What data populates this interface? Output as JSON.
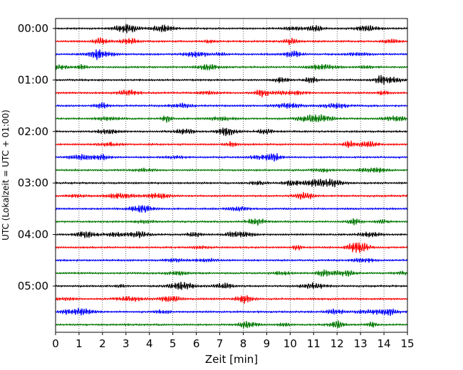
{
  "chart_data": {
    "type": "line",
    "title": "",
    "xlabel": "Zeit  [min]",
    "ylabel": "UTC (Lokalzeit = UTC + 01:00)",
    "xlim": [
      0,
      15
    ],
    "x_ticks": [
      0,
      1,
      2,
      3,
      4,
      5,
      6,
      7,
      8,
      9,
      10,
      11,
      12,
      13,
      14,
      15
    ],
    "y_tick_labels": [
      "00:00",
      "01:00",
      "02:00",
      "03:00",
      "04:00",
      "05:00"
    ],
    "trace_interval_minutes": 15,
    "trace_count": 24,
    "trace_colors": [
      "#000000",
      "#ff0000",
      "#0000ff",
      "#007800"
    ],
    "grid": "vertical dotted lines at each minute",
    "series": [
      {
        "start": "00:00"
      },
      {
        "start": "00:15"
      },
      {
        "start": "00:30"
      },
      {
        "start": "00:45"
      },
      {
        "start": "01:00"
      },
      {
        "start": "01:15"
      },
      {
        "start": "01:30"
      },
      {
        "start": "01:45"
      },
      {
        "start": "02:00"
      },
      {
        "start": "02:15"
      },
      {
        "start": "02:30"
      },
      {
        "start": "02:45"
      },
      {
        "start": "03:00"
      },
      {
        "start": "03:15"
      },
      {
        "start": "03:30"
      },
      {
        "start": "03:45"
      },
      {
        "start": "04:00"
      },
      {
        "start": "04:15"
      },
      {
        "start": "04:30"
      },
      {
        "start": "04:45"
      },
      {
        "start": "05:00"
      },
      {
        "start": "05:15"
      },
      {
        "start": "05:30"
      },
      {
        "start": "05:45"
      }
    ]
  }
}
